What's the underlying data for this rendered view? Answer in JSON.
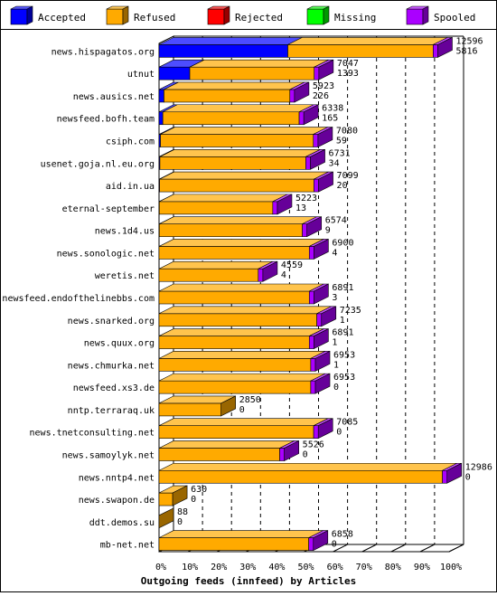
{
  "chart_data": {
    "type": "bar",
    "orientation": "horizontal",
    "stacked": true,
    "style": "3d",
    "title": "Outgoing feeds (innfeed) by Articles",
    "legend_position": "top",
    "xlim": [
      0,
      100
    ],
    "x_ticks": [
      "0%",
      "10%",
      "20%",
      "30%",
      "40%",
      "50%",
      "60%",
      "70%",
      "80%",
      "90%",
      "100%"
    ],
    "series": [
      {
        "name": "Accepted",
        "color": "#0000ff"
      },
      {
        "name": "Refused",
        "color": "#ffaa00"
      },
      {
        "name": "Rejected",
        "color": "#ff0000"
      },
      {
        "name": "Missing",
        "color": "#00ff00"
      },
      {
        "name": "Spooled",
        "color": "#aa00ff"
      }
    ],
    "categories": [
      {
        "name": "news.hispagatos.org",
        "offered": "12596",
        "accepted": "5816",
        "accepted_pct": 44.4,
        "refused_pct": 50.1,
        "spooled_pct": 1.6
      },
      {
        "name": "utnut",
        "offered": "7047",
        "accepted": "1393",
        "accepted_pct": 10.6,
        "refused_pct": 42.9,
        "spooled_pct": 1.6
      },
      {
        "name": "news.ausics.net",
        "offered": "5923",
        "accepted": "226",
        "accepted_pct": 1.7,
        "refused_pct": 43.4,
        "spooled_pct": 1.6
      },
      {
        "name": "newsfeed.bofh.team",
        "offered": "6338",
        "accepted": "165",
        "accepted_pct": 1.3,
        "refused_pct": 47.0,
        "spooled_pct": 1.6
      },
      {
        "name": "csiph.com",
        "offered": "7080",
        "accepted": "59",
        "accepted_pct": 0.5,
        "refused_pct": 52.7,
        "spooled_pct": 1.6
      },
      {
        "name": "usenet.goja.nl.eu.org",
        "offered": "6731",
        "accepted": "34",
        "accepted_pct": 0.3,
        "refused_pct": 50.3,
        "spooled_pct": 1.6
      },
      {
        "name": "aid.in.ua",
        "offered": "7099",
        "accepted": "20",
        "accepted_pct": 0.2,
        "refused_pct": 53.2,
        "spooled_pct": 1.6
      },
      {
        "name": "eternal-september",
        "offered": "5223",
        "accepted": "13",
        "accepted_pct": 0.1,
        "refused_pct": 39.1,
        "spooled_pct": 1.6
      },
      {
        "name": "news.1d4.us",
        "offered": "6574",
        "accepted": "9",
        "accepted_pct": 0.1,
        "refused_pct": 49.3,
        "spooled_pct": 1.6
      },
      {
        "name": "news.sonologic.net",
        "offered": "6900",
        "accepted": "4",
        "accepted_pct": 0.0,
        "refused_pct": 51.8,
        "spooled_pct": 1.6
      },
      {
        "name": "weretis.net",
        "offered": "4559",
        "accepted": "4",
        "accepted_pct": 0.0,
        "refused_pct": 34.2,
        "spooled_pct": 1.6
      },
      {
        "name": "newsfeed.endofthelinebbs.com",
        "offered": "6891",
        "accepted": "3",
        "accepted_pct": 0.0,
        "refused_pct": 51.8,
        "spooled_pct": 1.6
      },
      {
        "name": "news.snarked.org",
        "offered": "7235",
        "accepted": "1",
        "accepted_pct": 0.0,
        "refused_pct": 54.4,
        "spooled_pct": 1.6
      },
      {
        "name": "news.quux.org",
        "offered": "6891",
        "accepted": "1",
        "accepted_pct": 0.0,
        "refused_pct": 51.8,
        "spooled_pct": 1.6
      },
      {
        "name": "news.chmurka.net",
        "offered": "6953",
        "accepted": "1",
        "accepted_pct": 0.0,
        "refused_pct": 52.3,
        "spooled_pct": 1.6
      },
      {
        "name": "newsfeed.xs3.de",
        "offered": "6953",
        "accepted": "0",
        "accepted_pct": 0.0,
        "refused_pct": 52.3,
        "spooled_pct": 1.6
      },
      {
        "name": "nntp.terraraq.uk",
        "offered": "2850",
        "accepted": "0",
        "accepted_pct": 0.0,
        "refused_pct": 21.4,
        "spooled_pct": 0.0
      },
      {
        "name": "news.tnetconsulting.net",
        "offered": "7085",
        "accepted": "0",
        "accepted_pct": 0.0,
        "refused_pct": 53.3,
        "spooled_pct": 1.6
      },
      {
        "name": "news.samoylyk.net",
        "offered": "5526",
        "accepted": "0",
        "accepted_pct": 0.0,
        "refused_pct": 41.6,
        "spooled_pct": 1.6
      },
      {
        "name": "news.nntp4.net",
        "offered": "12986",
        "accepted": "0",
        "accepted_pct": 0.0,
        "refused_pct": 97.7,
        "spooled_pct": 1.6
      },
      {
        "name": "news.swapon.de",
        "offered": "630",
        "accepted": "0",
        "accepted_pct": 0.0,
        "refused_pct": 4.7,
        "spooled_pct": 0.0
      },
      {
        "name": "ddt.demos.su",
        "offered": "88",
        "accepted": "0",
        "accepted_pct": 0.0,
        "refused_pct": 0.0,
        "spooled_pct": 0.0
      },
      {
        "name": "mb-net.net",
        "offered": "6858",
        "accepted": "0",
        "accepted_pct": 0.0,
        "refused_pct": 51.6,
        "spooled_pct": 1.6
      }
    ]
  }
}
